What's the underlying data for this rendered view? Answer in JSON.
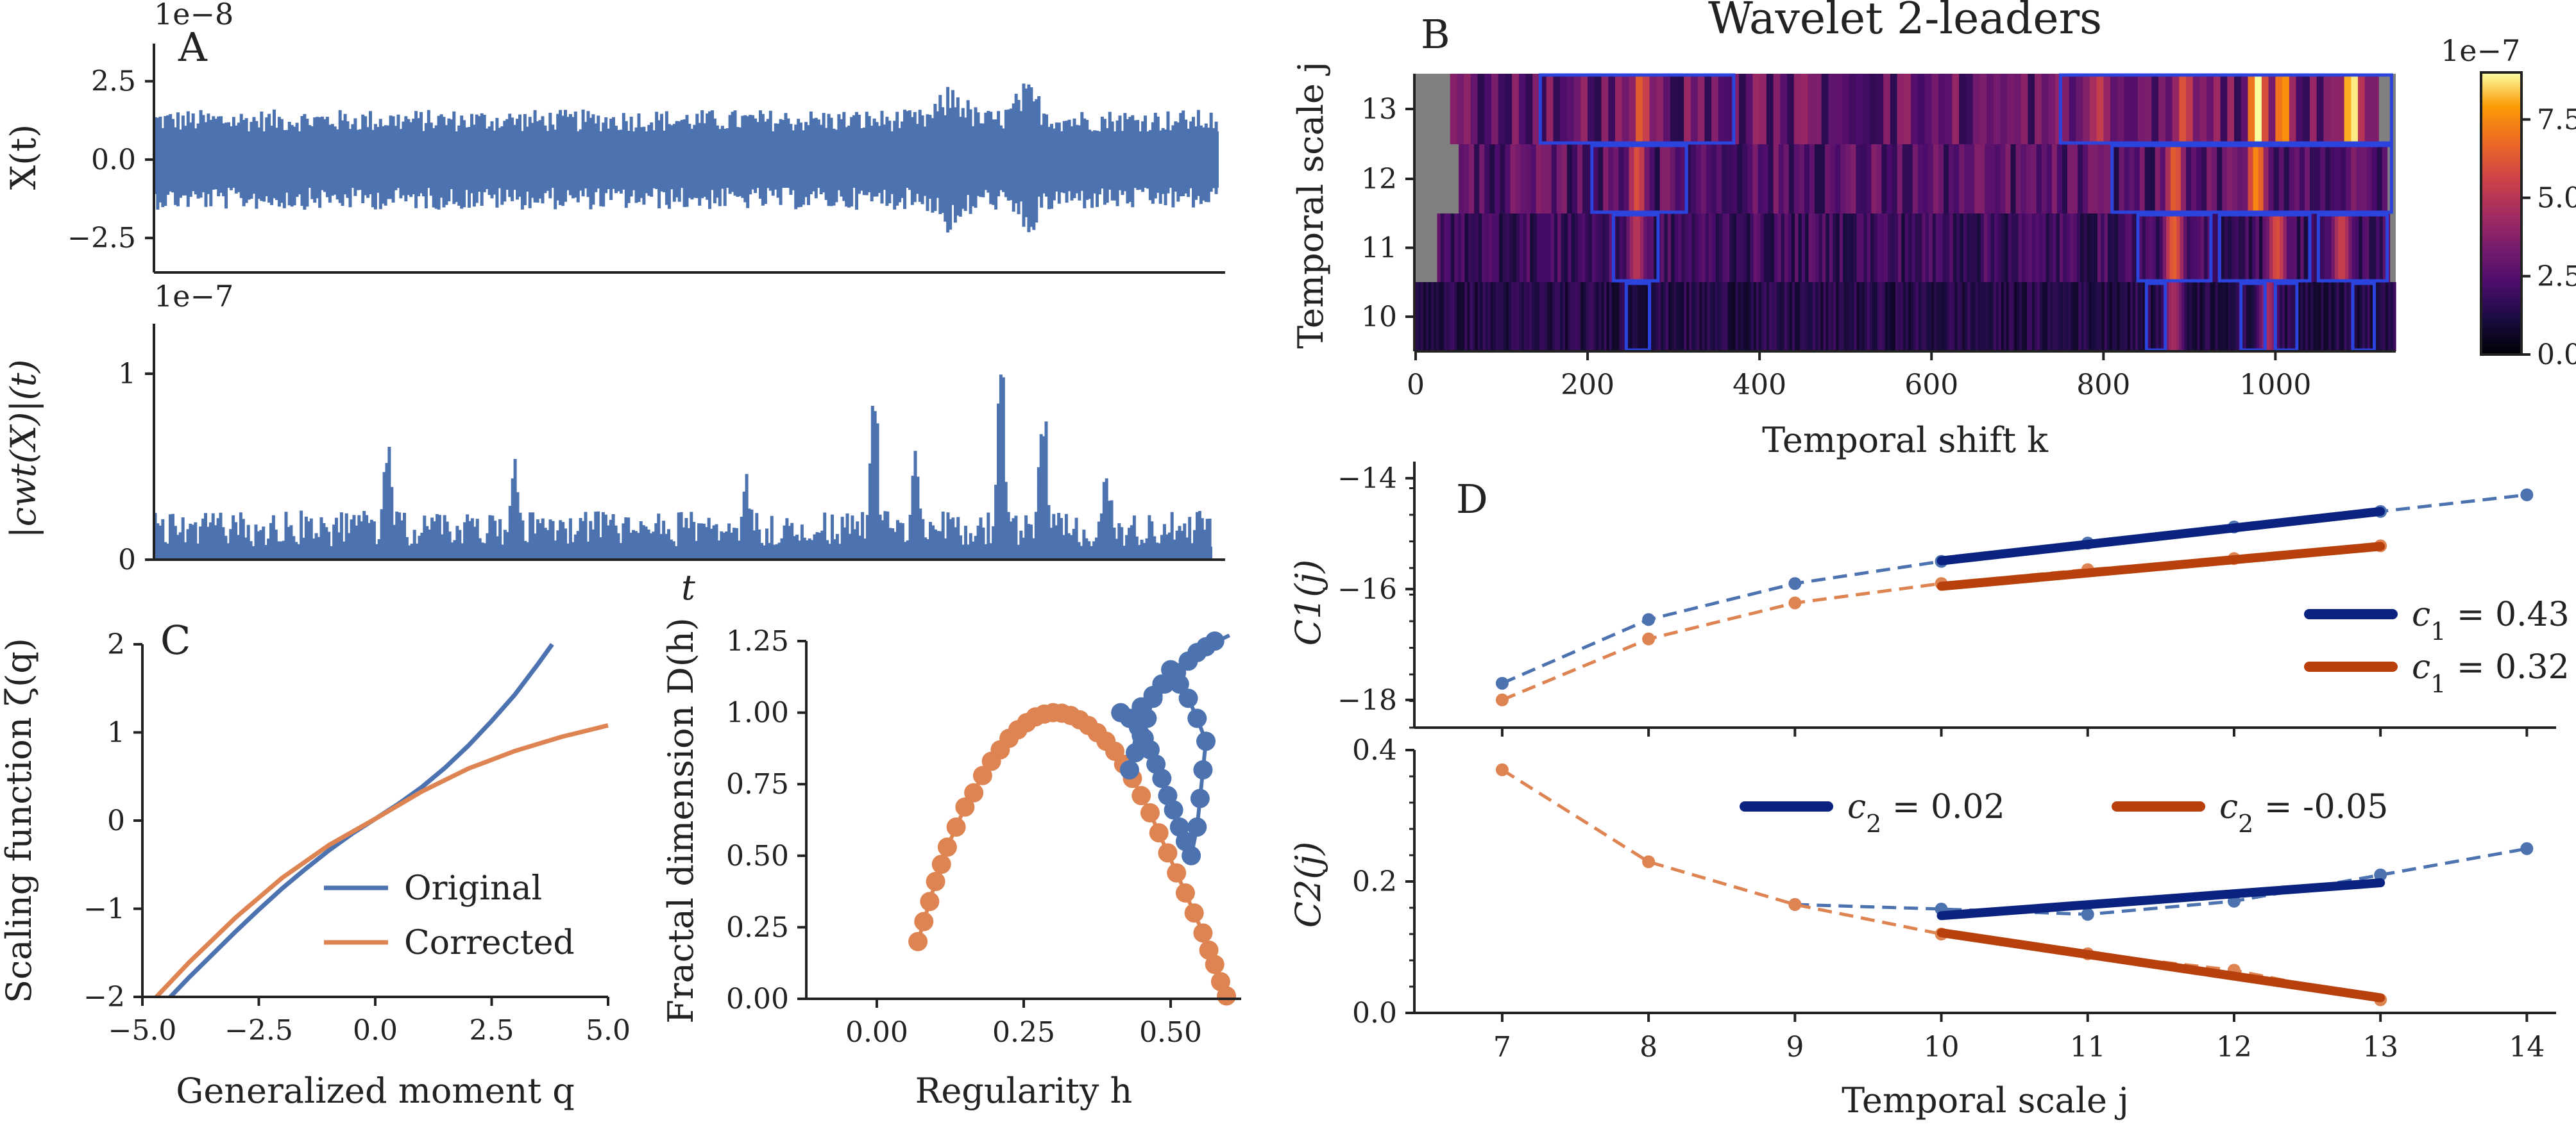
{
  "figure": {
    "panel_labels": [
      "A",
      "B",
      "C",
      "D"
    ]
  },
  "colors": {
    "blue": "#4c72b0",
    "orange": "#dd8452",
    "navy": "#0a2280",
    "rust": "#b8400c",
    "box": "#2a44dd",
    "missing": "#808080"
  },
  "chart_data": [
    {
      "id": "A_top",
      "type": "line",
      "title": "",
      "panel": "A",
      "ylabel": "X(t)",
      "offset_label": "1e−8",
      "yticks": [
        "2.5",
        "0.0",
        "−2.5"
      ],
      "ytick_values": [
        2.5,
        0.0,
        -2.5
      ],
      "ylim": [
        -3.6,
        3.7
      ],
      "envelope": {
        "points": 420,
        "amplitude_typical": 1.6,
        "amplitude_max": 3.4,
        "bursts": [
          0.75,
          0.82
        ]
      }
    },
    {
      "id": "A_bottom",
      "type": "line",
      "title": "",
      "ylabel": "|cwt(X)|(t)",
      "xlabel": "t",
      "offset_label": "1e−7",
      "yticks": [
        "1",
        "0"
      ],
      "ytick_values": [
        1,
        0
      ],
      "ylim": [
        0,
        1.2
      ],
      "envelope": {
        "points": 420,
        "baseline": 0.12,
        "peaks": [
          {
            "x": 0.22,
            "y": 0.72
          },
          {
            "x": 0.34,
            "y": 0.55
          },
          {
            "x": 0.56,
            "y": 0.5
          },
          {
            "x": 0.68,
            "y": 1.0
          },
          {
            "x": 0.72,
            "y": 0.65
          },
          {
            "x": 0.8,
            "y": 1.15
          },
          {
            "x": 0.84,
            "y": 1.0
          },
          {
            "x": 0.9,
            "y": 0.6
          }
        ]
      }
    },
    {
      "id": "B",
      "type": "heatmap",
      "panel": "B",
      "title": "Wavelet 2-leaders",
      "xlabel": "Temporal shift k",
      "ylabel": "Temporal scale j",
      "xticks": [
        0,
        200,
        400,
        600,
        800,
        1000
      ],
      "xlim": [
        0,
        1140
      ],
      "rows": [
        {
          "j": 13,
          "x_start": 40,
          "x_end": 1115
        },
        {
          "j": 12,
          "x_start": 50,
          "x_end": 1130
        },
        {
          "j": 11,
          "x_start": 25,
          "x_end": 1130
        },
        {
          "j": 10,
          "x_start": 0,
          "x_end": 1140
        }
      ],
      "colorbar": {
        "offset_label": "1e−7",
        "ticks": [
          "7.5",
          "5.0",
          "2.5",
          "0.0"
        ],
        "tick_values": [
          7.5,
          5.0,
          2.5,
          0.0
        ],
        "range": [
          0,
          9
        ]
      },
      "boxes": [
        {
          "j": 13,
          "k0": 145,
          "k1": 370
        },
        {
          "j": 13,
          "k0": 750,
          "k1": 1135
        },
        {
          "j": 12,
          "k0": 205,
          "k1": 315
        },
        {
          "j": 12,
          "k0": 810,
          "k1": 1135
        },
        {
          "j": 11,
          "k0": 230,
          "k1": 282
        },
        {
          "j": 11,
          "k0": 840,
          "k1": 925
        },
        {
          "j": 11,
          "k0": 935,
          "k1": 1040
        },
        {
          "j": 11,
          "k0": 1050,
          "k1": 1130
        },
        {
          "j": 10,
          "k0": 245,
          "k1": 272
        },
        {
          "j": 10,
          "k0": 850,
          "k1": 872
        },
        {
          "j": 10,
          "k0": 960,
          "k1": 988
        },
        {
          "j": 10,
          "k0": 1000,
          "k1": 1025
        },
        {
          "j": 10,
          "k0": 1090,
          "k1": 1115
        }
      ],
      "hotspots": [
        {
          "j": 13,
          "k": 258,
          "v": 6.5
        },
        {
          "j": 13,
          "k": 790,
          "v": 5.5
        },
        {
          "j": 13,
          "k": 890,
          "v": 6.2
        },
        {
          "j": 13,
          "k": 975,
          "v": 9.0
        },
        {
          "j": 13,
          "k": 1005,
          "v": 8.0
        },
        {
          "j": 13,
          "k": 1085,
          "v": 9.2
        },
        {
          "j": 12,
          "k": 255,
          "v": 6.0
        },
        {
          "j": 12,
          "k": 880,
          "v": 6.5
        },
        {
          "j": 12,
          "k": 975,
          "v": 7.5
        },
        {
          "j": 11,
          "k": 255,
          "v": 5.0
        },
        {
          "j": 11,
          "k": 880,
          "v": 6.5
        },
        {
          "j": 11,
          "k": 1000,
          "v": 6.0
        },
        {
          "j": 11,
          "k": 1075,
          "v": 5.5
        },
        {
          "j": 10,
          "k": 880,
          "v": 4.5
        },
        {
          "j": 10,
          "k": 990,
          "v": 4.5
        }
      ]
    },
    {
      "id": "C_left",
      "type": "line",
      "panel": "C",
      "xlabel": "Generalized moment q",
      "ylabel": "Scaling function ζ(q)",
      "xlim": [
        -5,
        5
      ],
      "ylim": [
        -2,
        2
      ],
      "xticks": [
        -5.0,
        -2.5,
        0.0,
        2.5,
        5.0
      ],
      "xtick_labels": [
        "−5.0",
        "−2.5",
        "0.0",
        "2.5",
        "5.0"
      ],
      "yticks": [
        -2,
        -1,
        0,
        1,
        2
      ],
      "ytick_labels": [
        "−2",
        "−1",
        "0",
        "1",
        "2"
      ],
      "legend": "lower-right",
      "series": [
        {
          "name": "Original",
          "x": [
            -4.4,
            -4.0,
            -3.5,
            -3.0,
            -2.5,
            -2.0,
            -1.5,
            -1.0,
            -0.5,
            0.0,
            0.5,
            1.0,
            1.5,
            2.0,
            2.5,
            3.0,
            3.5,
            3.8
          ],
          "y": [
            -2.0,
            -1.78,
            -1.52,
            -1.26,
            -1.01,
            -0.77,
            -0.55,
            -0.34,
            -0.15,
            0.02,
            0.19,
            0.38,
            0.6,
            0.85,
            1.13,
            1.43,
            1.78,
            2.0
          ]
        },
        {
          "name": "Corrected",
          "x": [
            -4.7,
            -4.0,
            -3.0,
            -2.0,
            -1.0,
            0.0,
            1.0,
            2.0,
            3.0,
            4.0,
            5.0
          ],
          "y": [
            -2.0,
            -1.61,
            -1.1,
            -0.65,
            -0.28,
            0.02,
            0.33,
            0.59,
            0.79,
            0.95,
            1.08
          ]
        }
      ]
    },
    {
      "id": "C_right",
      "type": "scatter",
      "xlabel": "Regularity h",
      "ylabel": "Fractal dimension D(h)",
      "xlim": [
        -0.12,
        0.62
      ],
      "ylim": [
        0,
        1.25
      ],
      "xticks": [
        0.0,
        0.25,
        0.5
      ],
      "xtick_labels": [
        "0.00",
        "0.25",
        "0.50"
      ],
      "yticks": [
        0,
        0.25,
        0.5,
        0.75,
        1.0,
        1.25
      ],
      "ytick_labels": [
        "0.00",
        "0.25",
        "0.50",
        "0.75",
        "1.00",
        "1.25"
      ],
      "series": [
        {
          "name": "Original",
          "x": [
            0.415,
            0.43,
            0.445,
            0.455,
            0.465,
            0.475,
            0.485,
            0.495,
            0.505,
            0.515,
            0.525,
            0.535,
            0.545,
            0.55,
            0.555,
            0.56,
            0.545,
            0.53,
            0.515,
            0.5,
            0.485,
            0.47,
            0.46,
            0.45,
            0.44,
            0.43,
            0.45,
            0.47,
            0.49,
            0.51,
            0.53,
            0.545,
            0.56,
            0.575,
            0.59,
            0.6
          ],
          "y": [
            1.0,
            0.98,
            0.95,
            0.91,
            0.87,
            0.82,
            0.77,
            0.71,
            0.66,
            0.6,
            0.55,
            0.5,
            0.6,
            0.7,
            0.8,
            0.9,
            0.98,
            1.05,
            1.1,
            1.15,
            1.1,
            1.05,
            0.98,
            0.92,
            0.86,
            0.8,
            1.02,
            1.06,
            1.1,
            1.14,
            1.18,
            1.21,
            1.23,
            1.25,
            1.26,
            1.27
          ]
        },
        {
          "name": "Corrected",
          "x": [
            0.07,
            0.08,
            0.09,
            0.1,
            0.11,
            0.12,
            0.135,
            0.15,
            0.165,
            0.18,
            0.195,
            0.21,
            0.225,
            0.24,
            0.255,
            0.27,
            0.285,
            0.3,
            0.315,
            0.33,
            0.345,
            0.36,
            0.375,
            0.39,
            0.405,
            0.42,
            0.435,
            0.45,
            0.465,
            0.48,
            0.495,
            0.51,
            0.525,
            0.54,
            0.555,
            0.565,
            0.575,
            0.585,
            0.595
          ],
          "y": [
            0.2,
            0.27,
            0.34,
            0.41,
            0.47,
            0.53,
            0.6,
            0.67,
            0.72,
            0.78,
            0.83,
            0.87,
            0.91,
            0.94,
            0.965,
            0.985,
            0.995,
            1.0,
            0.998,
            0.99,
            0.975,
            0.955,
            0.93,
            0.9,
            0.865,
            0.82,
            0.77,
            0.71,
            0.65,
            0.58,
            0.51,
            0.44,
            0.37,
            0.3,
            0.23,
            0.17,
            0.12,
            0.06,
            0.01
          ]
        }
      ]
    },
    {
      "id": "D_top",
      "type": "line",
      "panel": "D",
      "ylabel": "C1(j)",
      "xlim": [
        6.4,
        14.2
      ],
      "ylim": [
        -18.5,
        -13.7
      ],
      "yticks": [
        -14,
        -16,
        -18
      ],
      "ytick_labels": [
        "−14",
        "−16",
        "−18"
      ],
      "legend": "right",
      "series": [
        {
          "name": "original",
          "x": [
            7,
            8,
            9,
            10,
            11,
            12,
            13,
            14
          ],
          "y": [
            -17.7,
            -16.55,
            -15.9,
            -15.5,
            -15.17,
            -14.88,
            -14.6,
            -14.3
          ]
        },
        {
          "name": "corrected",
          "x": [
            7,
            8,
            9,
            10,
            11,
            12,
            13
          ],
          "y": [
            -18.0,
            -16.9,
            -16.25,
            -15.9,
            -15.65,
            -15.45,
            -15.22
          ]
        }
      ],
      "fits": [
        {
          "label": "c1 = 0.43",
          "sym": "c",
          "sub": "1",
          "value": "= 0.43",
          "x0": 10,
          "x1": 13,
          "y0": -15.49,
          "y1": -14.6
        },
        {
          "label": "c1 = 0.32",
          "sym": "c",
          "sub": "1",
          "value": "= 0.32",
          "x0": 10,
          "x1": 13,
          "y0": -15.95,
          "y1": -15.23
        }
      ]
    },
    {
      "id": "D_bottom",
      "type": "line",
      "xlabel": "Temporal scale j",
      "ylabel": "C2(j)",
      "xlim": [
        6.4,
        14.2
      ],
      "ylim": [
        0,
        0.4
      ],
      "xticks": [
        7,
        8,
        9,
        10,
        11,
        12,
        13,
        14
      ],
      "yticks": [
        0.0,
        0.2,
        0.4
      ],
      "ytick_labels": [
        "0.0",
        "0.2",
        "0.4"
      ],
      "legend": "top",
      "series": [
        {
          "name": "original",
          "x": [
            9,
            10,
            11,
            12,
            13,
            14
          ],
          "y": [
            0.165,
            0.158,
            0.15,
            0.17,
            0.21,
            0.25
          ]
        },
        {
          "name": "corrected",
          "x": [
            7,
            8,
            9,
            10,
            11,
            12,
            13
          ],
          "y": [
            0.37,
            0.23,
            0.165,
            0.12,
            0.09,
            0.065,
            0.02
          ]
        }
      ],
      "fits": [
        {
          "label": "c2 = 0.02",
          "sym": "c",
          "sub": "2",
          "value": "= 0.02",
          "x0": 10,
          "x1": 13,
          "y0": 0.148,
          "y1": 0.198
        },
        {
          "label": "c2 = -0.05",
          "sym": "c",
          "sub": "2",
          "value": "= -0.05",
          "x0": 10,
          "x1": 13,
          "y0": 0.122,
          "y1": 0.023
        }
      ]
    }
  ]
}
